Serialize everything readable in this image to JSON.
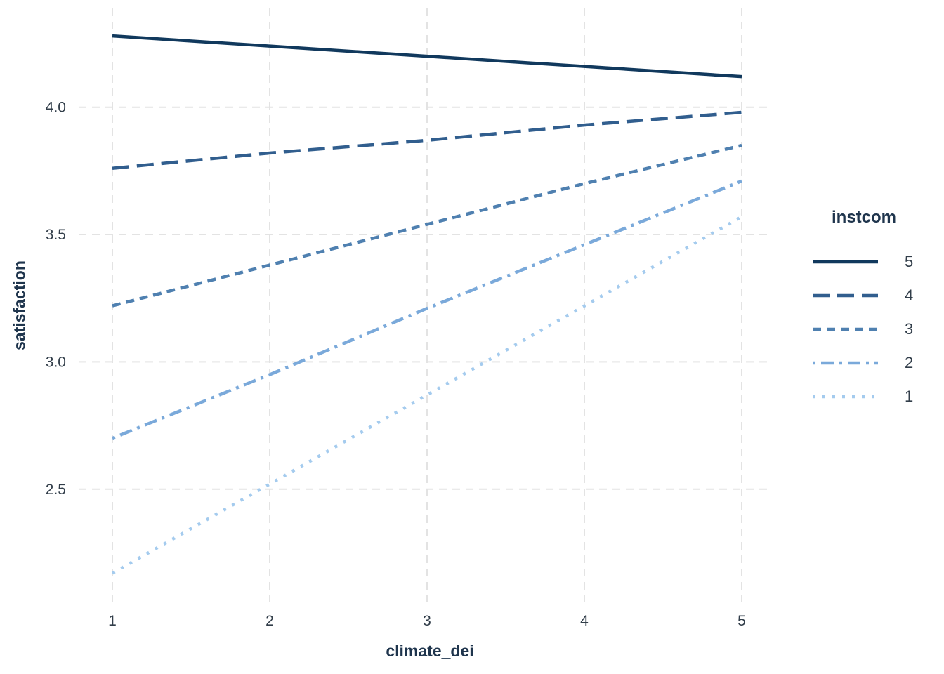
{
  "figure": {
    "background": "#ffffff"
  },
  "chart_data": {
    "type": "line",
    "title": "",
    "xlabel": "climate_dei",
    "ylabel": "satisfaction",
    "x": [
      1,
      2,
      3,
      4,
      5
    ],
    "x_tick_labels": [
      "1",
      "2",
      "3",
      "4",
      "5"
    ],
    "y_ticks": [
      2.5,
      3.0,
      3.5,
      4.0
    ],
    "y_tick_labels": [
      "2.5",
      "3.0",
      "3.5",
      "4.0"
    ],
    "xlim": [
      0.79,
      5.2
    ],
    "ylim": [
      2.06,
      4.39
    ],
    "grid": "major-both-dashed",
    "legend": {
      "title": "instcom",
      "position": "right"
    },
    "series": [
      {
        "name": "5",
        "linetype": "solid",
        "color": "#11395d",
        "values": [
          4.28,
          4.24,
          4.2,
          4.16,
          4.12
        ]
      },
      {
        "name": "4",
        "linetype": "dashed",
        "color": "#315e8e",
        "values": [
          3.76,
          3.82,
          3.87,
          3.93,
          3.98
        ]
      },
      {
        "name": "3",
        "linetype": "shortdash",
        "color": "#4f80b0",
        "values": [
          3.22,
          3.38,
          3.54,
          3.7,
          3.85
        ]
      },
      {
        "name": "2",
        "linetype": "dotdash",
        "color": "#7aa9da",
        "values": [
          2.7,
          2.95,
          3.21,
          3.46,
          3.71
        ]
      },
      {
        "name": "1",
        "linetype": "dotted",
        "color": "#a4cbee",
        "values": [
          2.17,
          2.52,
          2.87,
          3.22,
          3.57
        ]
      }
    ],
    "colors": {
      "grid": "#e3e3e3",
      "tick_text": "#323e4a",
      "title_text": "#1f354d"
    }
  }
}
